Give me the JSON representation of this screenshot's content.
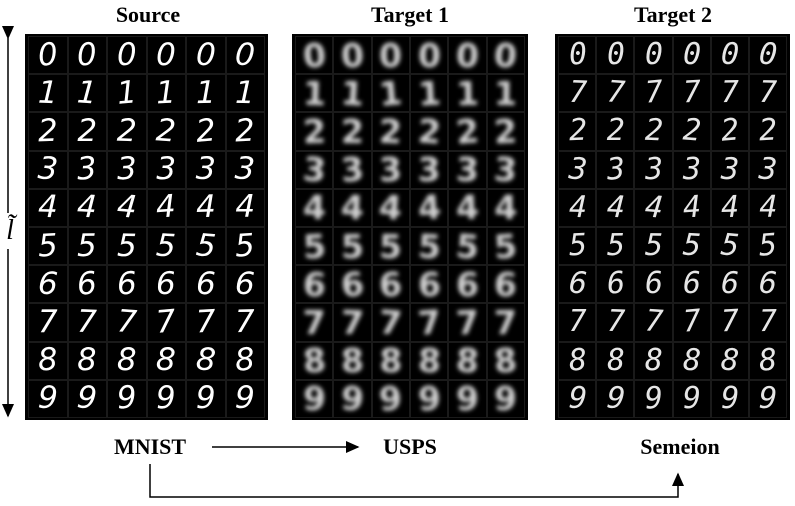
{
  "headers": {
    "source": "Source",
    "target1": "Target 1",
    "target2": "Target 2"
  },
  "datasets": {
    "source": "MNIST",
    "target1": "USPS",
    "target2": "Semeion"
  },
  "latent_label": "l̃",
  "grid": {
    "digits": [
      "0",
      "1",
      "2",
      "3",
      "4",
      "5",
      "6",
      "7",
      "8",
      "9"
    ],
    "samples_per_digit": 6
  },
  "target2_row_digits": [
    "0",
    "7",
    "2",
    "3",
    "4",
    "5",
    "6",
    "7",
    "8",
    "9"
  ]
}
